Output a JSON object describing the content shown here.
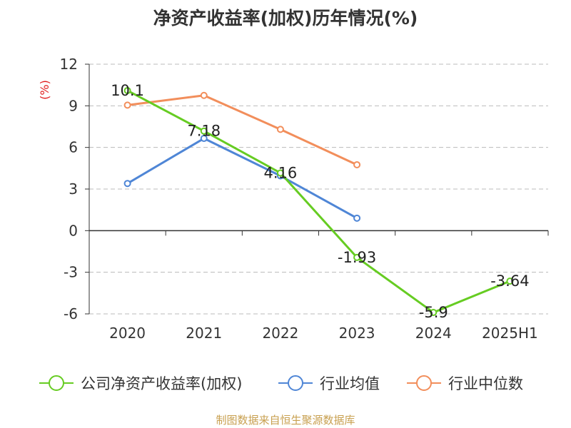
{
  "chart_data": {
    "type": "line",
    "title": "净资产收益率(加权)历年情况(%)",
    "ylabel": "(%)",
    "ylabel_color": "#e02020",
    "categories": [
      "2020",
      "2021",
      "2022",
      "2023",
      "2024",
      "2025H1"
    ],
    "ylim": [
      -6,
      12
    ],
    "yticks": [
      -6,
      -3,
      0,
      3,
      6,
      9,
      12
    ],
    "grid": true,
    "legend_position": "bottom",
    "series": [
      {
        "name": "公司净资产收益率(加权)",
        "color": "#66cc22",
        "values": [
          10.1,
          7.18,
          4.16,
          -1.93,
          -5.9,
          -3.64
        ],
        "labels": [
          "10.1",
          "7.18",
          "4.16",
          "-1.93",
          "-5.9",
          "-3.64"
        ]
      },
      {
        "name": "行业均值",
        "color": "#4f86d6",
        "values": [
          3.4,
          6.65,
          3.95,
          0.9,
          null,
          null
        ]
      },
      {
        "name": "行业中位数",
        "color": "#f28e5b",
        "values": [
          9.05,
          9.75,
          7.3,
          4.75,
          null,
          null
        ]
      }
    ]
  },
  "footer": {
    "source": "制图数据来自恒生聚源数据库"
  }
}
